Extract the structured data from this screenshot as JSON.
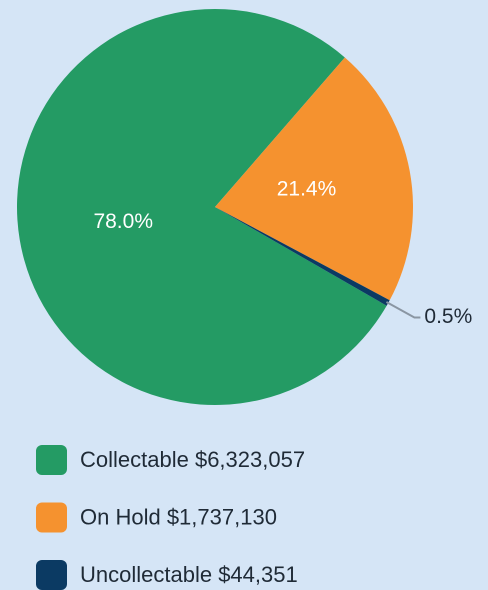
{
  "chart_data": {
    "type": "pie",
    "categories": [
      "Collectable $6,323,057",
      "On Hold $1,737,130",
      "Uncollectable $44,351"
    ],
    "values": [
      78.0,
      21.4,
      0.5
    ],
    "value_labels": [
      "78.0%",
      "21.4%",
      "0.5%"
    ],
    "colors": [
      "#249b64",
      "#f5922f",
      "#0b3a63"
    ]
  }
}
